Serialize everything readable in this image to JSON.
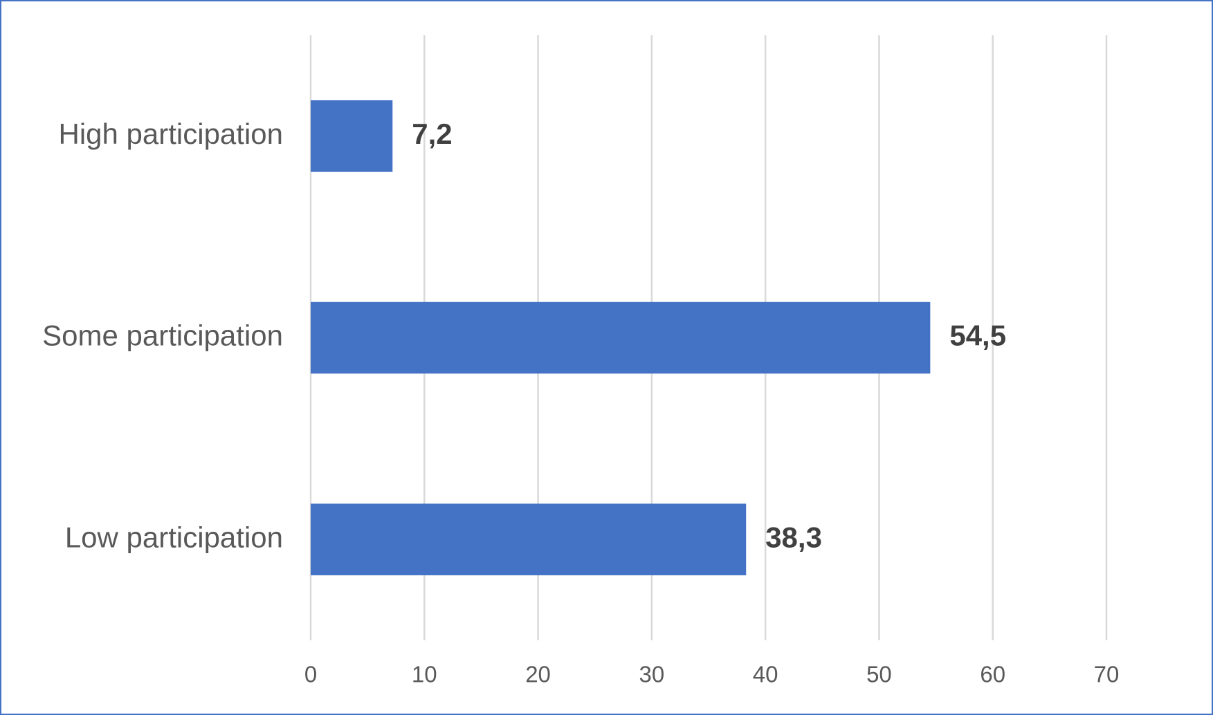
{
  "chart_data": {
    "type": "bar",
    "orientation": "horizontal",
    "categories": [
      "High participation",
      "Some participation",
      "Low participation"
    ],
    "values": [
      7.2,
      54.5,
      38.3
    ],
    "value_labels": [
      "7,2",
      "54,5",
      "38,3"
    ],
    "color": "#4472c4",
    "xlim": [
      0,
      70
    ],
    "xticks": [
      0,
      10,
      20,
      30,
      40,
      50,
      60,
      70
    ],
    "grid": true
  }
}
